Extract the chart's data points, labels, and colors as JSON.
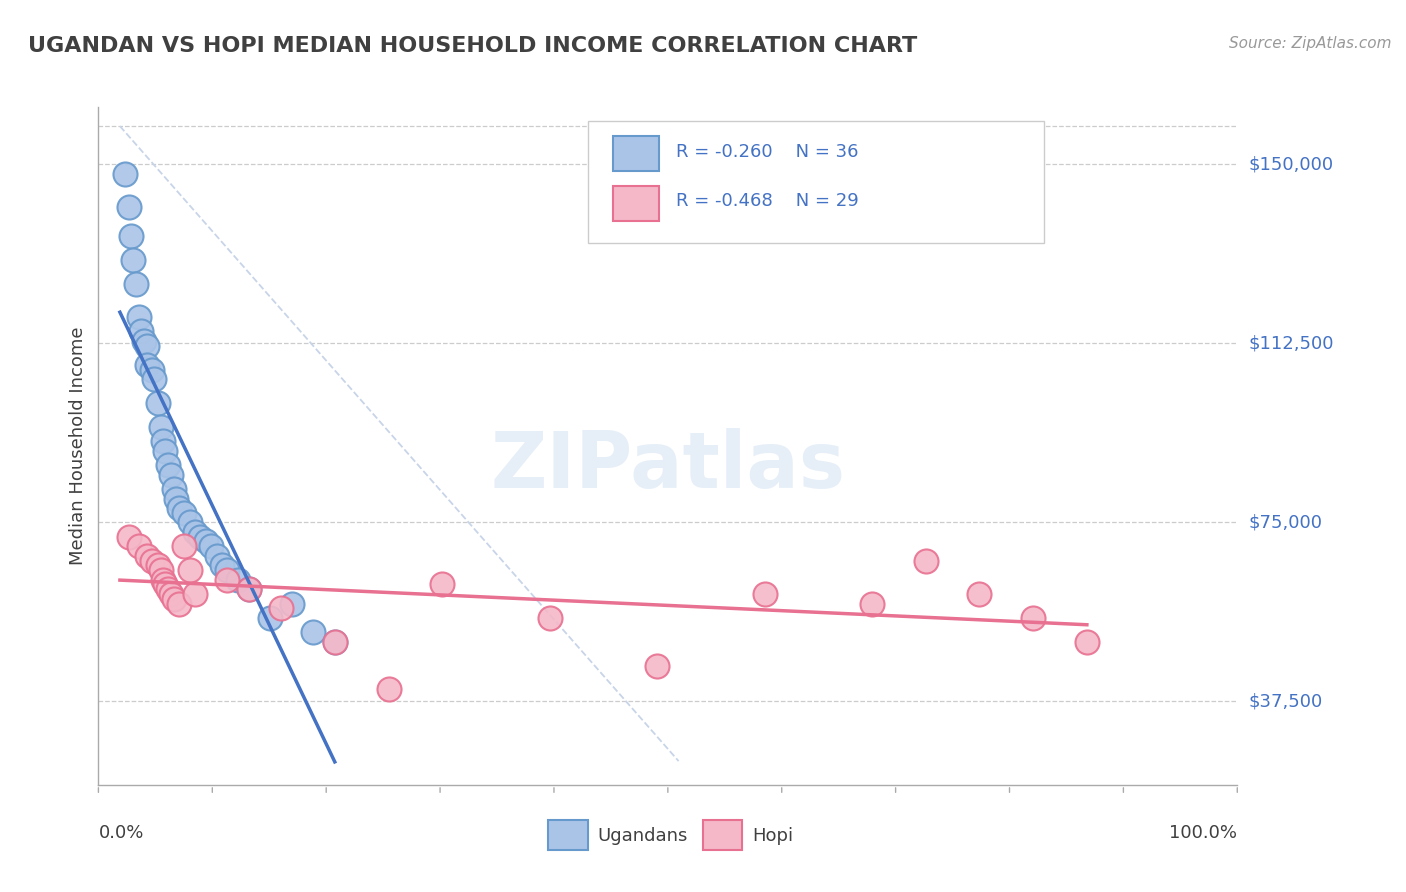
{
  "title": "UGANDAN VS HOPI MEDIAN HOUSEHOLD INCOME CORRELATION CHART",
  "source": "Source: ZipAtlas.com",
  "ylabel": "Median Household Income",
  "ytick_labels": [
    "$37,500",
    "$75,000",
    "$112,500",
    "$150,000"
  ],
  "ytick_values": [
    37500,
    75000,
    112500,
    150000
  ],
  "ymin": 20000,
  "ymax": 162000,
  "xmin": -0.02,
  "xmax": 1.04,
  "legend_label1": "Ugandans",
  "legend_label2": "Hopi",
  "ugandan_color": "#aac4e8",
  "hopi_color": "#f4b8c8",
  "ugandan_edge": "#6699cc",
  "hopi_edge": "#e87090",
  "line1_color": "#4472c4",
  "line2_color": "#e87090",
  "diag_color": "#c8d4e8",
  "title_color": "#404040",
  "label_color": "#4472c4",
  "ugandan_x": [
    0.005,
    0.008,
    0.01,
    0.012,
    0.015,
    0.018,
    0.02,
    0.022,
    0.025,
    0.025,
    0.03,
    0.032,
    0.035,
    0.038,
    0.04,
    0.042,
    0.045,
    0.048,
    0.05,
    0.052,
    0.055,
    0.06,
    0.065,
    0.07,
    0.075,
    0.08,
    0.085,
    0.09,
    0.095,
    0.1,
    0.11,
    0.12,
    0.14,
    0.16,
    0.18,
    0.2
  ],
  "ugandan_y": [
    148000,
    141000,
    135000,
    130000,
    125000,
    118000,
    115000,
    113000,
    112000,
    108000,
    107000,
    105000,
    100000,
    95000,
    92000,
    90000,
    87000,
    85000,
    82000,
    80000,
    78000,
    77000,
    75000,
    73000,
    72000,
    71000,
    70000,
    68000,
    66000,
    65000,
    63000,
    61000,
    55000,
    58000,
    52000,
    50000
  ],
  "hopi_x": [
    0.008,
    0.018,
    0.025,
    0.03,
    0.035,
    0.038,
    0.04,
    0.042,
    0.045,
    0.048,
    0.05,
    0.055,
    0.06,
    0.065,
    0.07,
    0.1,
    0.12,
    0.15,
    0.2,
    0.25,
    0.3,
    0.4,
    0.5,
    0.6,
    0.7,
    0.75,
    0.8,
    0.85,
    0.9
  ],
  "hopi_y": [
    72000,
    70000,
    68000,
    67000,
    66000,
    65000,
    63000,
    62000,
    61000,
    60000,
    59000,
    58000,
    70000,
    65000,
    60000,
    63000,
    61000,
    57000,
    50000,
    40000,
    62000,
    55000,
    45000,
    60000,
    58000,
    67000,
    60000,
    55000,
    50000
  ]
}
